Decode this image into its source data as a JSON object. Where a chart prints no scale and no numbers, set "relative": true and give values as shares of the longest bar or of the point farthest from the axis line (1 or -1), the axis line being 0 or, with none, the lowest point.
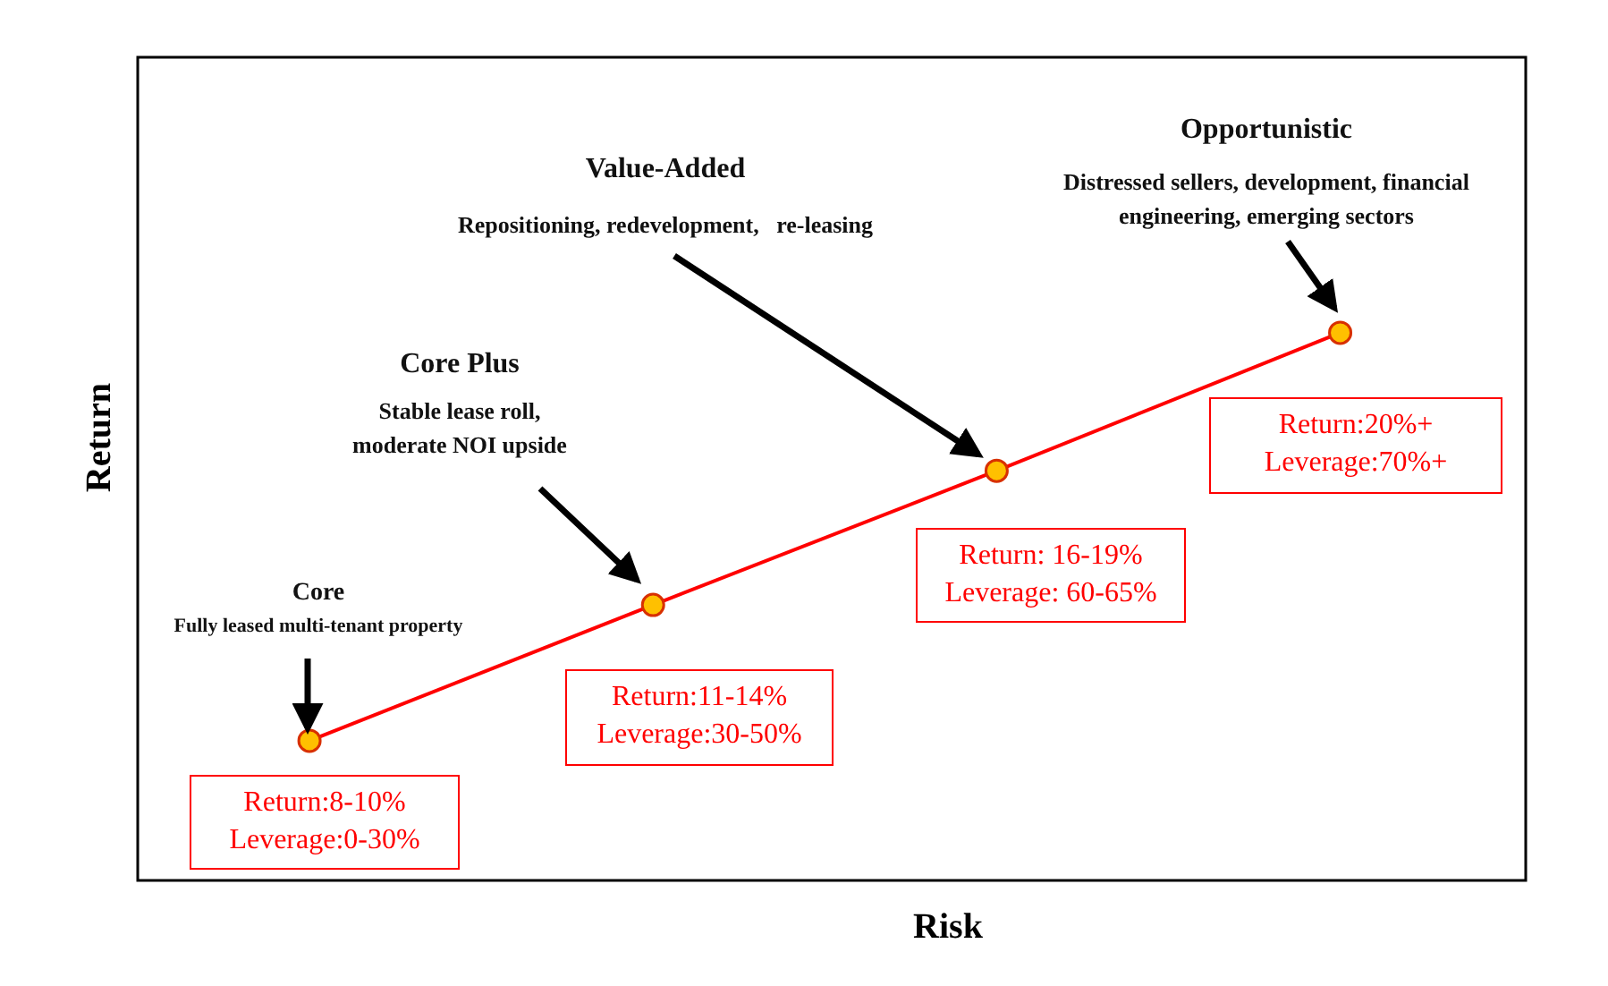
{
  "chart_data": {
    "type": "line",
    "relative": true,
    "xlabel": "Risk",
    "ylabel": "Return",
    "categories": [
      null,
      null,
      null,
      null
    ],
    "series": [
      {
        "color": "#ff0000",
        "values": [
          0.255,
          0.503,
          0.748,
          1
        ]
      }
    ],
    "marker": "circle",
    "line_style": "solid",
    "legend": false,
    "annotations": [
      "Core",
      "Fully leased multi-tenant property",
      "Return:8-10%\nLeverage:0-30%",
      "Core Plus",
      "Stable lease roll,\nmoderate NOI upside",
      "Return:11-14%\nLeverage:30-50%",
      "Value-Added",
      "Repositioning, redevelopment,   re-leasing",
      "Return: 16-19%\nLeverage: 60-65%",
      "Opportunistic",
      "Distressed sellers, development, financial\nengineering, emerging sectors",
      "Return:20%+\nLeverage:70%+"
    ]
  }
}
